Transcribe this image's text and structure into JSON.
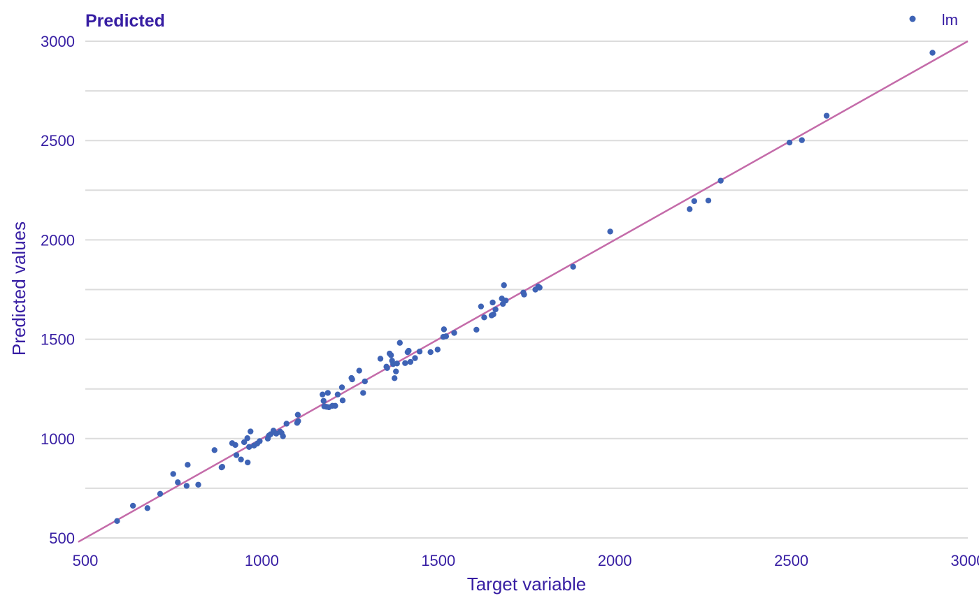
{
  "chart_data": {
    "type": "scatter",
    "title": "Predicted",
    "xlabel": "Target variable",
    "ylabel": "Predicted values",
    "xlim": [
      500,
      3000
    ],
    "ylim": [
      500,
      3000
    ],
    "xticks": [
      500,
      1000,
      1500,
      2000,
      2500,
      3000
    ],
    "yticks": [
      500,
      1000,
      1500,
      2000,
      2500,
      3000
    ],
    "ygrid_minor": [
      750,
      1250,
      1750,
      2250,
      2750
    ],
    "grid": "horizontal",
    "legend_position": "top-right",
    "colors": {
      "text": "#371ea3",
      "points": "#3e63b5",
      "line": "#c46ba9",
      "grid": "#dcdcdc"
    },
    "reference_line": {
      "x": [
        480,
        3000
      ],
      "y": [
        480,
        3000
      ]
    },
    "series": [
      {
        "name": "lm",
        "points": [
          [
            590,
            585
          ],
          [
            635,
            662
          ],
          [
            676,
            650
          ],
          [
            712,
            722
          ],
          [
            749,
            822
          ],
          [
            762,
            780
          ],
          [
            787,
            762
          ],
          [
            790,
            868
          ],
          [
            820,
            768
          ],
          [
            866,
            942
          ],
          [
            886,
            855
          ],
          [
            888,
            858
          ],
          [
            916,
            977
          ],
          [
            925,
            968
          ],
          [
            928,
            917
          ],
          [
            941,
            895
          ],
          [
            950,
            982
          ],
          [
            959,
            1002
          ],
          [
            960,
            880
          ],
          [
            964,
            958
          ],
          [
            968,
            1036
          ],
          [
            978,
            965
          ],
          [
            987,
            975
          ],
          [
            994,
            987
          ],
          [
            1017,
            1000
          ],
          [
            1020,
            1015
          ],
          [
            1025,
            1022
          ],
          [
            1033,
            1040
          ],
          [
            1041,
            1025
          ],
          [
            1052,
            1035
          ],
          [
            1056,
            1028
          ],
          [
            1060,
            1012
          ],
          [
            1070,
            1075
          ],
          [
            1100,
            1079
          ],
          [
            1102,
            1120
          ],
          [
            1103,
            1088
          ],
          [
            1172,
            1222
          ],
          [
            1175,
            1190
          ],
          [
            1177,
            1162
          ],
          [
            1183,
            1160
          ],
          [
            1187,
            1230
          ],
          [
            1190,
            1158
          ],
          [
            1200,
            1165
          ],
          [
            1208,
            1165
          ],
          [
            1215,
            1222
          ],
          [
            1227,
            1258
          ],
          [
            1229,
            1192
          ],
          [
            1254,
            1305
          ],
          [
            1256,
            1298
          ],
          [
            1276,
            1342
          ],
          [
            1287,
            1230
          ],
          [
            1292,
            1288
          ],
          [
            1336,
            1402
          ],
          [
            1353,
            1362
          ],
          [
            1355,
            1355
          ],
          [
            1362,
            1428
          ],
          [
            1366,
            1420
          ],
          [
            1369,
            1392
          ],
          [
            1372,
            1375
          ],
          [
            1376,
            1304
          ],
          [
            1380,
            1338
          ],
          [
            1383,
            1378
          ],
          [
            1391,
            1482
          ],
          [
            1406,
            1380
          ],
          [
            1413,
            1435
          ],
          [
            1416,
            1442
          ],
          [
            1421,
            1386
          ],
          [
            1434,
            1405
          ],
          [
            1447,
            1438
          ],
          [
            1478,
            1435
          ],
          [
            1498,
            1448
          ],
          [
            1514,
            1512
          ],
          [
            1516,
            1550
          ],
          [
            1522,
            1515
          ],
          [
            1545,
            1532
          ],
          [
            1608,
            1548
          ],
          [
            1621,
            1665
          ],
          [
            1630,
            1610
          ],
          [
            1651,
            1620
          ],
          [
            1654,
            1685
          ],
          [
            1656,
            1625
          ],
          [
            1662,
            1650
          ],
          [
            1680,
            1705
          ],
          [
            1683,
            1678
          ],
          [
            1686,
            1772
          ],
          [
            1691,
            1695
          ],
          [
            1741,
            1735
          ],
          [
            1743,
            1725
          ],
          [
            1775,
            1750
          ],
          [
            1783,
            1765
          ],
          [
            1787,
            1760
          ],
          [
            1882,
            1865
          ],
          [
            1987,
            2042
          ],
          [
            2212,
            2155
          ],
          [
            2225,
            2195
          ],
          [
            2265,
            2198
          ],
          [
            2300,
            2298
          ],
          [
            2495,
            2490
          ],
          [
            2530,
            2502
          ],
          [
            2600,
            2625
          ],
          [
            2900,
            2942
          ]
        ]
      }
    ]
  }
}
